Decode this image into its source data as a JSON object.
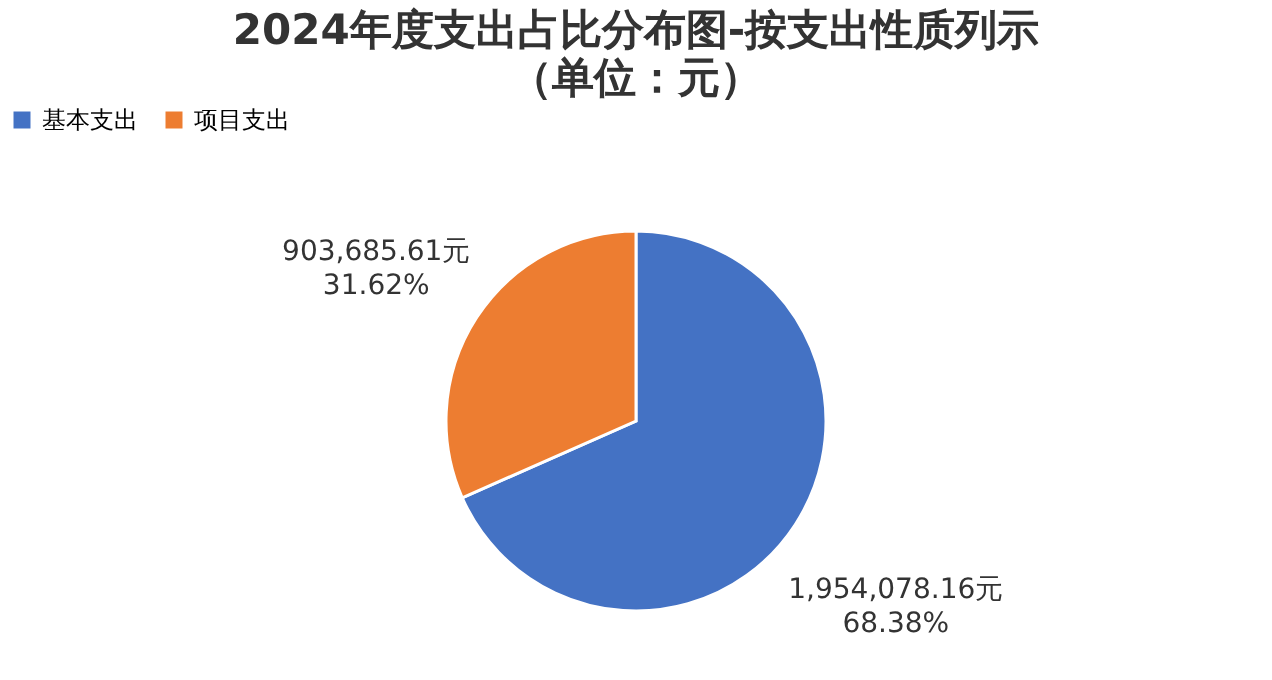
{
  "chart_data": {
    "type": "pie",
    "title": "2024年度支出占比分布图-按支出性质列示",
    "subtitle": "（单位：元）",
    "categories": [
      "基本支出",
      "项目支出"
    ],
    "values": [
      1954078.16,
      903685.61
    ],
    "colors": [
      "#4472c4",
      "#ed7d31"
    ],
    "value_labels": [
      "1,954,078.16元\n68.38%",
      "903,685.61元\n31.62%"
    ],
    "legend": "top"
  }
}
